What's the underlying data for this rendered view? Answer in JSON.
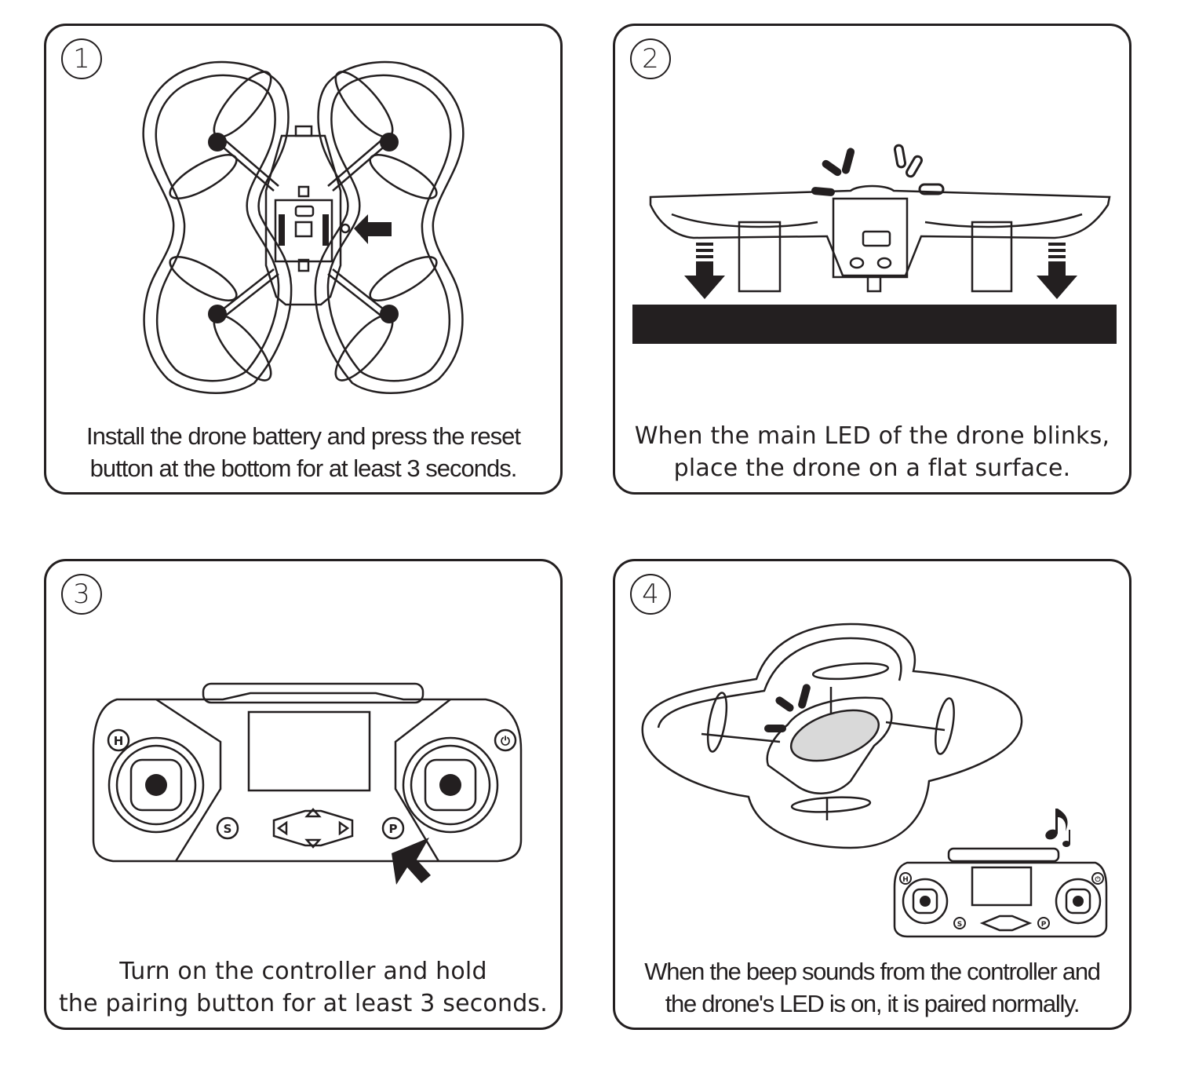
{
  "steps": [
    {
      "number": "1",
      "caption_line1": "Install the drone battery and press the reset",
      "caption_line2": "button at the bottom for at least 3 seconds."
    },
    {
      "number": "2",
      "caption_line1": "When the main LED of the drone blinks,",
      "caption_line2": "place the drone on a flat surface."
    },
    {
      "number": "3",
      "caption_line1": "Turn on the controller and hold",
      "caption_line2": "the pairing button for at least 3 seconds.",
      "buttons": {
        "home": "H",
        "power": "⏻",
        "speed": "S",
        "pair": "P"
      }
    },
    {
      "number": "4",
      "caption_line1": "When the beep sounds from the controller and",
      "caption_line2": "the drone's LED is on, it is paired normally.",
      "buttons": {
        "home": "H",
        "power": "⏻",
        "speed": "S",
        "pair": "P"
      },
      "sound_icon": "music-note-icon"
    }
  ],
  "colors": {
    "ink": "#231f20",
    "led_glow": "#d9d9d9"
  }
}
